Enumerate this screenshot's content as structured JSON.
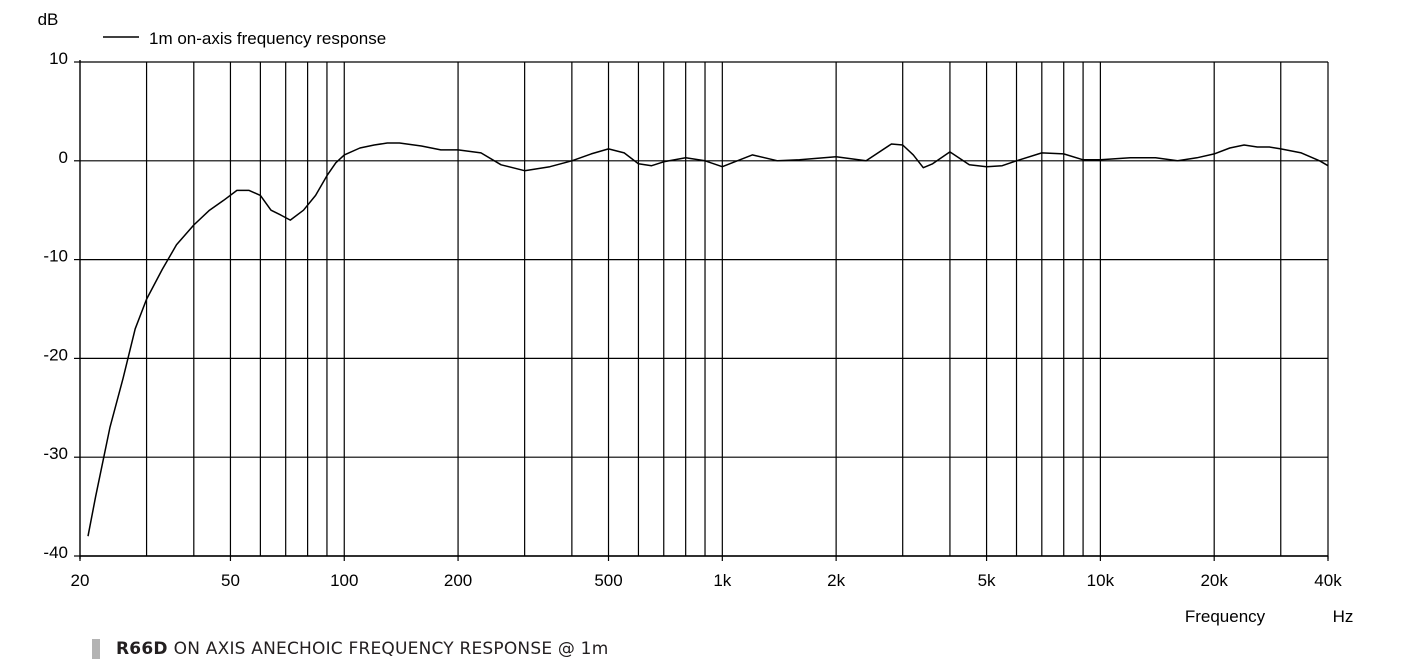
{
  "chart_data": {
    "type": "line",
    "ylabel": "dB",
    "xlabel": "Frequency",
    "xunit": "Hz",
    "xscale": "log",
    "xlim": [
      20,
      40000
    ],
    "ylim": [
      -40,
      10
    ],
    "grid": true,
    "legend_position": "top-left",
    "y_ticks": [
      10,
      0,
      -10,
      -20,
      -30,
      -40
    ],
    "y_tick_labels": [
      "10",
      "0",
      "-10",
      "-20",
      "-30",
      "-40"
    ],
    "x_tick_values": [
      20,
      50,
      100,
      200,
      500,
      1000,
      2000,
      5000,
      10000,
      20000,
      40000
    ],
    "x_tick_labels": [
      "20",
      "50",
      "100",
      "200",
      "500",
      "1k",
      "2k",
      "5k",
      "10k",
      "20k",
      "40k"
    ],
    "gridlines_x": [
      30,
      40,
      50,
      60,
      70,
      80,
      90,
      100,
      200,
      300,
      400,
      500,
      600,
      700,
      800,
      900,
      1000,
      2000,
      3000,
      4000,
      5000,
      6000,
      7000,
      8000,
      9000,
      10000,
      20000,
      30000
    ],
    "series": [
      {
        "name": "1m on-axis frequency response",
        "color": "#000000",
        "x": [
          21,
          22,
          24,
          26,
          28,
          30,
          33,
          36,
          40,
          44,
          48,
          52,
          56,
          60,
          64,
          68,
          72,
          78,
          84,
          90,
          95,
          100,
          110,
          120,
          130,
          140,
          160,
          180,
          200,
          230,
          260,
          300,
          350,
          400,
          450,
          500,
          550,
          600,
          650,
          700,
          800,
          900,
          1000,
          1200,
          1400,
          1600,
          2000,
          2400,
          2800,
          3000,
          3200,
          3400,
          3600,
          4000,
          4500,
          5000,
          5500,
          6000,
          7000,
          8000,
          9000,
          10000,
          12000,
          14000,
          16000,
          18000,
          20000,
          22000,
          24000,
          26000,
          28000,
          30000,
          34000,
          38000,
          40000
        ],
        "values": [
          -38,
          -34,
          -27,
          -22,
          -17,
          -14,
          -11,
          -8.5,
          -6.5,
          -5,
          -4,
          -3,
          -3,
          -3.5,
          -5,
          -5.5,
          -6,
          -5,
          -3.5,
          -1.5,
          -0.2,
          0.6,
          1.3,
          1.6,
          1.8,
          1.8,
          1.5,
          1.1,
          1.1,
          0.8,
          -0.4,
          -1,
          -0.6,
          0,
          0.7,
          1.2,
          0.8,
          -0.3,
          -0.5,
          -0.1,
          0.3,
          0,
          -0.6,
          0.6,
          0,
          0.1,
          0.4,
          0,
          1.7,
          1.6,
          0.6,
          -0.7,
          -0.3,
          0.9,
          -0.4,
          -0.6,
          -0.5,
          0,
          0.8,
          0.7,
          0.1,
          0.1,
          0.3,
          0.3,
          0,
          0.3,
          0.7,
          1.3,
          1.6,
          1.4,
          1.4,
          1.2,
          0.8,
          0,
          -0.5
        ]
      }
    ]
  },
  "caption": {
    "model": "R66D",
    "text": "ON AXIS ANECHOIC FREQUENCY RESPONSE @ 1m"
  }
}
